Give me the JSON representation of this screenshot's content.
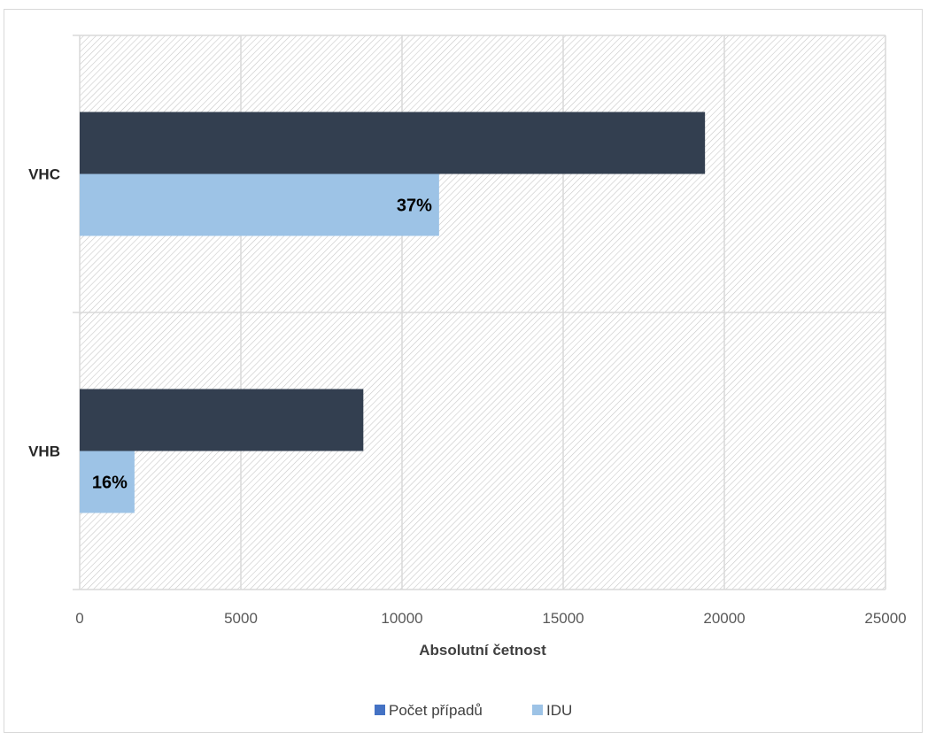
{
  "chart_data": {
    "type": "bar",
    "orientation": "horizontal",
    "categories": [
      "VHC",
      "VHB"
    ],
    "series": [
      {
        "name": "Počet případů",
        "values": [
          19400,
          8800
        ],
        "color": "#333f50",
        "legend_color": "#4472c4"
      },
      {
        "name": "IDU",
        "values": [
          11150,
          1700
        ],
        "color": "#9dc3e6",
        "legend_color": "#9dc3e6",
        "data_labels": [
          "37%",
          "16%"
        ]
      }
    ],
    "xlabel": "Absolutní četnost",
    "xlim": [
      0,
      25000
    ],
    "xticks": [
      0,
      5000,
      10000,
      15000,
      20000,
      25000
    ],
    "grid": true,
    "legend_position": "bottom"
  }
}
